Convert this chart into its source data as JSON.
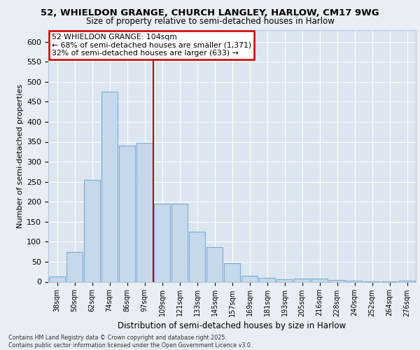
{
  "title_line1": "52, WHIELDON GRANGE, CHURCH LANGLEY, HARLOW, CM17 9WG",
  "title_line2": "Size of property relative to semi-detached houses in Harlow",
  "xlabel": "Distribution of semi-detached houses by size in Harlow",
  "ylabel": "Number of semi-detached properties",
  "categories": [
    "38sqm",
    "50sqm",
    "62sqm",
    "74sqm",
    "86sqm",
    "97sqm",
    "109sqm",
    "121sqm",
    "133sqm",
    "145sqm",
    "157sqm",
    "169sqm",
    "181sqm",
    "193sqm",
    "205sqm",
    "216sqm",
    "228sqm",
    "240sqm",
    "252sqm",
    "264sqm",
    "276sqm"
  ],
  "values": [
    13,
    75,
    254,
    476,
    340,
    348,
    196,
    196,
    125,
    87,
    46,
    15,
    9,
    6,
    8,
    8,
    5,
    2,
    1,
    1,
    3
  ],
  "bar_color": "#c5d8ec",
  "bar_edge_color": "#7aadd4",
  "vline_color": "#cc0000",
  "annotation_label": "52 WHIELDON GRANGE: 104sqm",
  "annotation_line1": "← 68% of semi-detached houses are smaller (1,371)",
  "annotation_line2": "32% of semi-detached houses are larger (633) →",
  "ylim": [
    0,
    630
  ],
  "yticks": [
    0,
    50,
    100,
    150,
    200,
    250,
    300,
    350,
    400,
    450,
    500,
    550,
    600
  ],
  "background_color": "#e8eef4",
  "plot_bg_color": "#dce6f0",
  "grid_color": "#ffffff",
  "footer": "Contains HM Land Registry data © Crown copyright and database right 2025.\nContains public sector information licensed under the Open Government Licence v3.0."
}
